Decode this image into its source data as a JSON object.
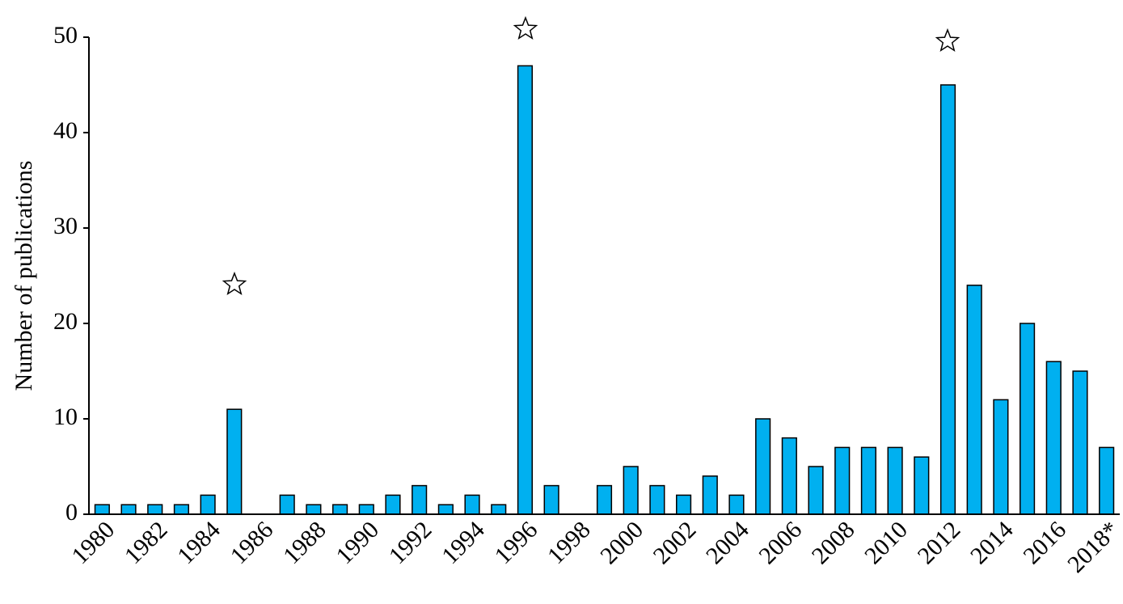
{
  "chart_data": {
    "type": "bar",
    "y_label": "Number of publications",
    "categories": [
      "1980",
      null,
      "1982",
      null,
      "1984",
      null,
      "1986",
      null,
      "1988",
      null,
      "1990",
      null,
      "1992",
      null,
      "1994",
      null,
      "1996",
      null,
      "1998",
      null,
      "2000",
      null,
      "2002",
      null,
      "2004",
      null,
      "2006",
      null,
      "2008",
      null,
      "2010",
      null,
      "2012",
      null,
      "2014",
      null,
      "2016",
      null,
      "2018*"
    ],
    "values": [
      1,
      1,
      1,
      1,
      2,
      11,
      0,
      2,
      1,
      1,
      1,
      2,
      3,
      1,
      2,
      1,
      47,
      3,
      0,
      3,
      5,
      3,
      2,
      4,
      2,
      10,
      8,
      5,
      7,
      7,
      7,
      6,
      45,
      24,
      12,
      20,
      16,
      15,
      7
    ],
    "color": "#00b0f0",
    "ylim": [
      0,
      50
    ],
    "yticks": [
      0,
      10,
      20,
      30,
      40,
      50
    ]
  }
}
